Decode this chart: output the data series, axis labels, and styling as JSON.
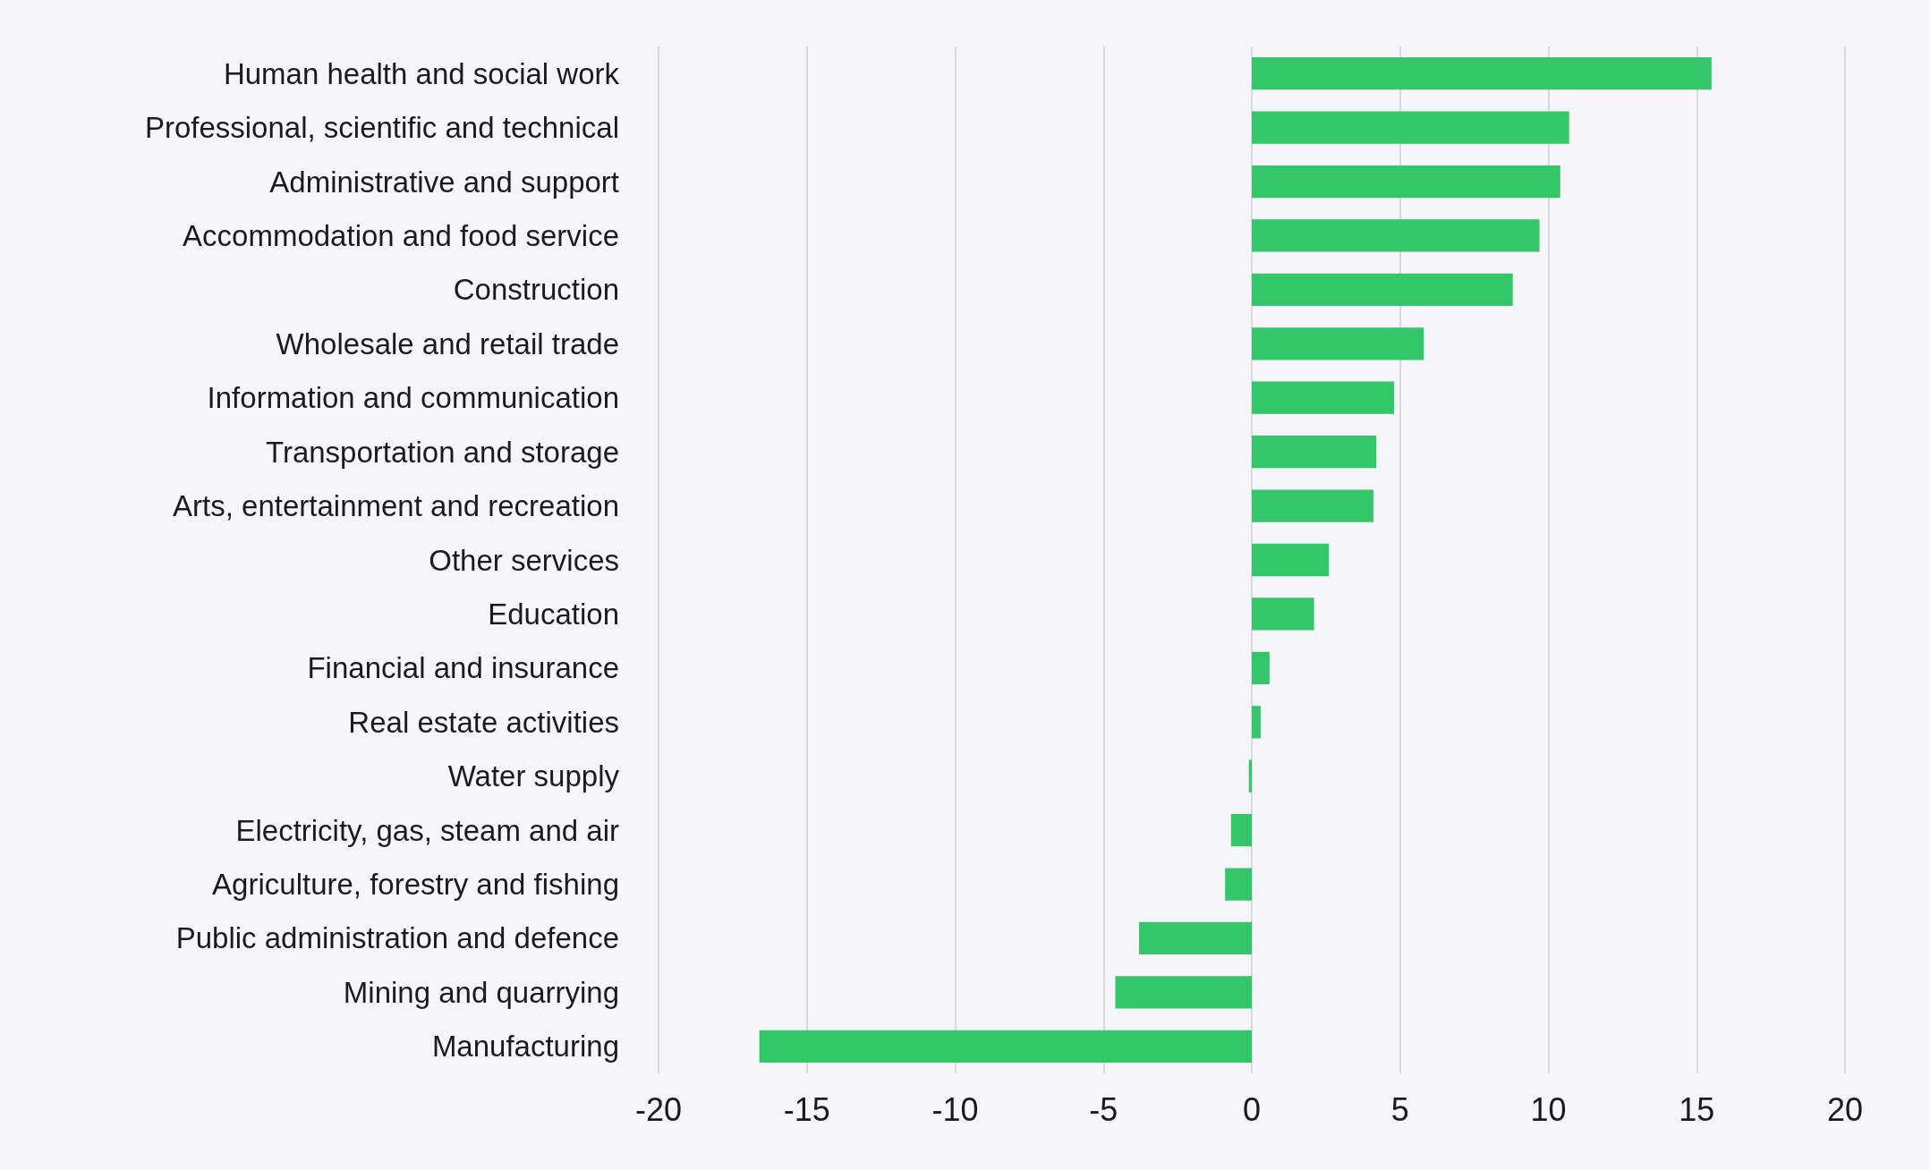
{
  "chart_data": {
    "type": "bar",
    "orientation": "horizontal",
    "categories": [
      "Human health and social work",
      "Professional, scientific and technical",
      "Administrative and support",
      "Accommodation and food service",
      "Construction",
      "Wholesale and retail trade",
      "Information and communication",
      "Transportation and storage",
      "Arts, entertainment and recreation",
      "Other services",
      "Education",
      "Financial and insurance",
      "Real estate activities",
      "Water supply",
      "Electricity, gas, steam and air",
      "Agriculture, forestry and fishing",
      "Public administration and defence",
      "Mining and quarrying",
      "Manufacturing"
    ],
    "values": [
      15.5,
      10.7,
      10.4,
      9.7,
      8.8,
      5.8,
      4.8,
      4.2,
      4.1,
      2.6,
      2.1,
      0.6,
      0.3,
      -0.1,
      -0.7,
      -0.9,
      -3.8,
      -4.6,
      -16.6
    ],
    "color": "#34c76a",
    "xlim": [
      -20,
      20
    ],
    "xticks": [
      -20,
      -15,
      -10,
      -5,
      0,
      5,
      10,
      15,
      20
    ],
    "grid": "x"
  }
}
